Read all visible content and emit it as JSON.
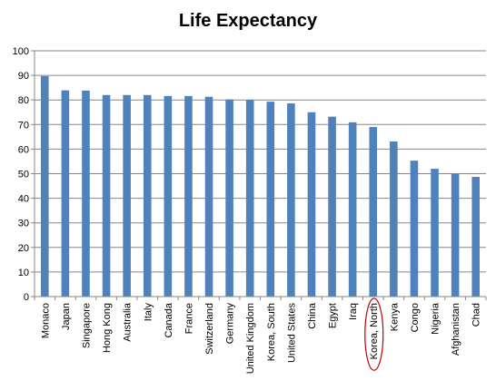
{
  "chart_data": {
    "type": "bar",
    "title": "Life Expectancy",
    "xlabel": "",
    "ylabel": "",
    "ylim": [
      0,
      100
    ],
    "yticks": [
      0,
      10,
      20,
      30,
      40,
      50,
      60,
      70,
      80,
      90,
      100
    ],
    "grid": true,
    "bar_color": "#4F81BD",
    "highlight_color": "#C00000",
    "highlighted_category": "Korea, North",
    "categories": [
      "Monaco",
      "Japan",
      "Singapore",
      "Hong Kong",
      "Australia",
      "Italy",
      "Canada",
      "France",
      "Switzerland",
      "Germany",
      "United Kingdom",
      "Korea, South",
      "United States",
      "China",
      "Egypt",
      "Iraq",
      "Korea, North",
      "Kenya",
      "Congo",
      "Nigeria",
      "Afghanistan",
      "Chad"
    ],
    "values": [
      89.7,
      83.9,
      83.8,
      82.0,
      82.0,
      82.0,
      81.6,
      81.6,
      81.3,
      80.2,
      80.0,
      79.3,
      78.6,
      75.0,
      73.2,
      70.9,
      69.0,
      63.1,
      55.3,
      52.0,
      50.0,
      48.7
    ]
  }
}
